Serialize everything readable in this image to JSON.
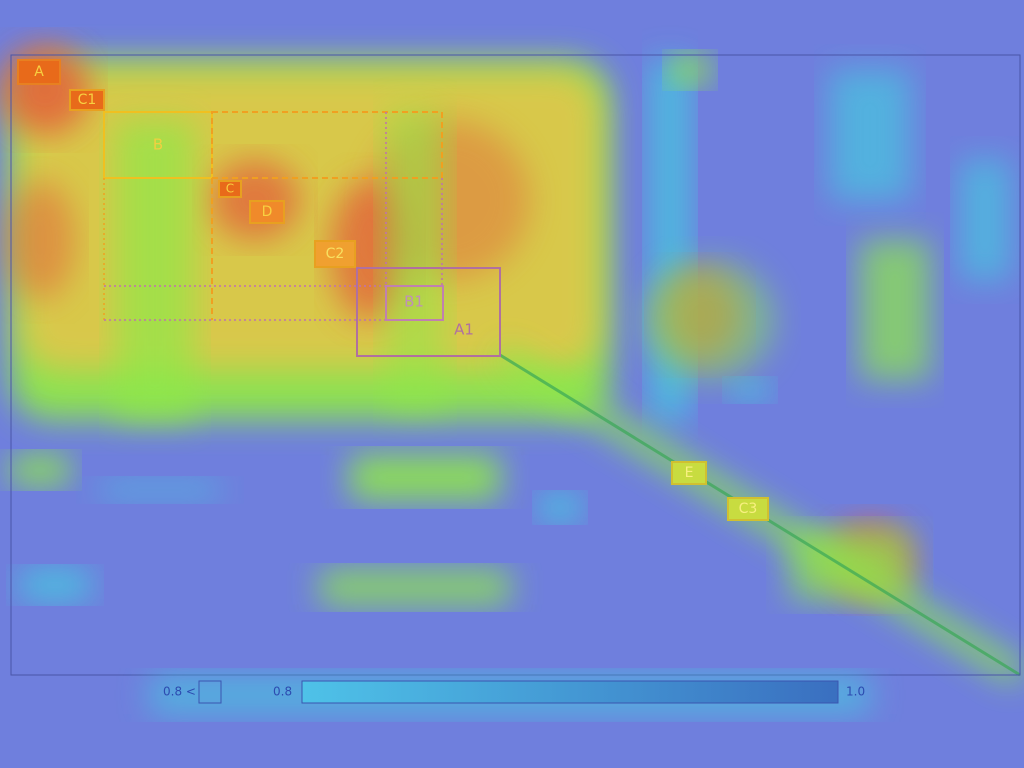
{
  "chart_data": {
    "type": "heatmap",
    "title": "",
    "xlabel": "",
    "ylabel": "",
    "grid": false,
    "legend_placement": "bottom",
    "legend": {
      "below_label": "0.8 <",
      "min_label": "0.8",
      "max_label": "1.0",
      "range": [
        0.8,
        1.0
      ]
    },
    "regions": [
      {
        "id": "A",
        "label": "A",
        "style": "label-only"
      },
      {
        "id": "C1",
        "label": "C1",
        "style": "label-only"
      },
      {
        "id": "B",
        "label": "B",
        "style": "solid"
      },
      {
        "id": "C",
        "label": "C",
        "style": "label-only"
      },
      {
        "id": "D",
        "label": "D",
        "style": "label-only"
      },
      {
        "id": "C2",
        "label": "C2",
        "style": "label-only"
      },
      {
        "id": "B1",
        "label": "B1",
        "style": "solid"
      },
      {
        "id": "A1",
        "label": "A1",
        "style": "solid"
      },
      {
        "id": "E",
        "label": "E",
        "style": "label-only"
      },
      {
        "id": "C3",
        "label": "C3",
        "style": "label-only"
      }
    ]
  },
  "colors": {
    "background": "#6f7fdd",
    "frame": "#4a55a8",
    "hot": "#e2663a",
    "warm": "#f2c04a",
    "mid": "#8fe84a",
    "cool": "#3fd3e0",
    "label_fill_strong": "#e86a1a",
    "label_fill_soft": "#f0d53a",
    "box_orange": "#f0a020",
    "box_purple": "#b070a0",
    "legend_bar_start": "#4ec2e8",
    "legend_bar_end": "#3a6fc0"
  }
}
